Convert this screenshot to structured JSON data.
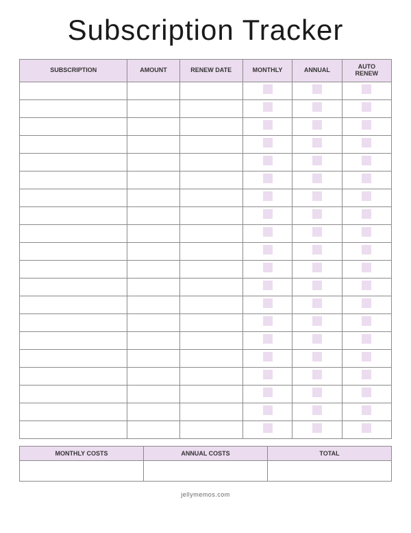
{
  "title": "Subscription Tracker",
  "table": {
    "headers": {
      "subscription": "SUBSCRIPTION",
      "amount": "AMOUNT",
      "renew_date": "RENEW DATE",
      "monthly": "MONTHLY",
      "annual": "ANNUAL",
      "auto_renew": "AUTO\nRENEW"
    },
    "row_count": 20,
    "header_bg": "#ecdcef",
    "checkbox_bg": "#ecdcef",
    "border_color": "#8a8a8a"
  },
  "summary": {
    "monthly_costs": "MONTHLY COSTS",
    "annual_costs": "ANNUAL COSTS",
    "total": "TOTAL",
    "header_bg": "#ecdcef"
  },
  "footer": "jellymemos.com",
  "colors": {
    "accent": "#ecdcef",
    "text": "#1a1a1a",
    "border": "#8a8a8a",
    "background": "#ffffff"
  }
}
